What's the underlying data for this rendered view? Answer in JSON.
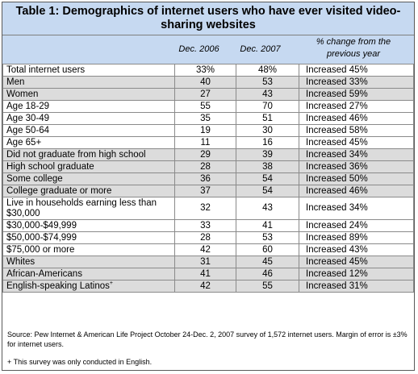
{
  "title": "Table 1: Demographics of internet users who have ever visited video-sharing websites",
  "columns": {
    "c1": "Dec. 2006",
    "c2": "Dec. 2007",
    "c3_line1": "% change from the",
    "c3_line2": "previous year"
  },
  "rows": [
    {
      "label": "Total internet users",
      "v2006": "33%",
      "v2007": "48%",
      "change": "Increased 45%"
    },
    {
      "label": "Men",
      "v2006": "40",
      "v2007": "53",
      "change": "Increased 33%"
    },
    {
      "label": "Women",
      "v2006": "27",
      "v2007": "43",
      "change": "Increased 59%"
    },
    {
      "label": "Age 18-29",
      "v2006": "55",
      "v2007": "70",
      "change": "Increased 27%"
    },
    {
      "label": "Age 30-49",
      "v2006": "35",
      "v2007": "51",
      "change": "Increased 46%"
    },
    {
      "label": "Age 50-64",
      "v2006": "19",
      "v2007": "30",
      "change": "Increased 58%"
    },
    {
      "label": "Age 65+",
      "v2006": "11",
      "v2007": "16",
      "change": "Increased 45%"
    },
    {
      "label": "Did not graduate from high school",
      "v2006": "29",
      "v2007": "39",
      "change": "Increased 34%"
    },
    {
      "label": "High school graduate",
      "v2006": "28",
      "v2007": "38",
      "change": "Increased 36%"
    },
    {
      "label": "Some college",
      "v2006": "36",
      "v2007": "54",
      "change": "Increased 50%"
    },
    {
      "label": "College graduate or more",
      "v2006": "37",
      "v2007": "54",
      "change": "Increased 46%"
    },
    {
      "label": "Live in households earning less than $30,000",
      "v2006": "32",
      "v2007": "43",
      "change": "Increased 34%"
    },
    {
      "label": "$30,000-$49,999",
      "v2006": "33",
      "v2007": "41",
      "change": "Increased 24%"
    },
    {
      "label": "$50,000-$74,999",
      "v2006": "28",
      "v2007": "53",
      "change": "Increased 89%"
    },
    {
      "label": "$75,000 or more",
      "v2006": "42",
      "v2007": "60",
      "change": "Increased 43%"
    },
    {
      "label": "Whites",
      "v2006": "31",
      "v2007": "45",
      "change": "Increased 45%"
    },
    {
      "label": "African-Americans",
      "v2006": "41",
      "v2007": "46",
      "change": "Increased 12%"
    },
    {
      "label": "English-speaking Latinos",
      "label_sup": "+",
      "v2006": "42",
      "v2007": "55",
      "change": "Increased 31%"
    }
  ],
  "source": "Source: Pew Internet & American Life Project October 24-Dec. 2, 2007 survey of 1,572 internet users. Margin of error is ±3% for internet users.",
  "footnote": "+ This survey was only conducted in English."
}
